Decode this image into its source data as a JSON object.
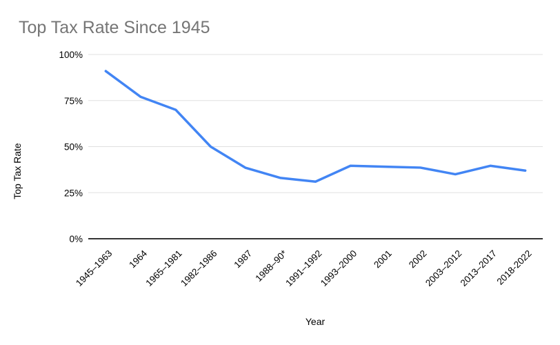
{
  "chart_data": {
    "type": "line",
    "title": "Top Tax Rate Since 1945",
    "xlabel": "Year",
    "ylabel": "Top Tax Rate",
    "categories": [
      "1945–1963",
      "1964",
      "1965–1981",
      "1982–1986",
      "1987",
      "1988–90*",
      "1991–1992",
      "1993–2000",
      "2001",
      "2002",
      "2003–2012",
      "2013–2017",
      "2018-2022"
    ],
    "values": [
      91,
      77,
      70,
      50,
      38.5,
      33,
      31,
      39.6,
      39.1,
      38.6,
      35,
      39.6,
      37
    ],
    "ylim": [
      0,
      100
    ],
    "ytick_values": [
      0,
      25,
      50,
      75,
      100
    ],
    "ytick_labels": [
      "0%",
      "25%",
      "50%",
      "75%",
      "100%"
    ],
    "grid": true,
    "legend_position": "none",
    "colors": {
      "line": "#4285f4",
      "grid": "#e0e0e0",
      "axis": "#333333",
      "title": "#757575",
      "text": "#000000"
    }
  }
}
